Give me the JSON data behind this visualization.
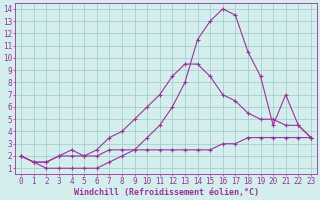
{
  "xlabel": "Windchill (Refroidissement éolien,°C)",
  "bg_color": "#d4eeed",
  "grid_color": "#a8cece",
  "line_color": "#993399",
  "xlim": [
    -0.5,
    23.5
  ],
  "ylim": [
    0.5,
    14.5
  ],
  "xticks": [
    0,
    1,
    2,
    3,
    4,
    5,
    6,
    7,
    8,
    9,
    10,
    11,
    12,
    13,
    14,
    15,
    16,
    17,
    18,
    19,
    20,
    21,
    22,
    23
  ],
  "yticks": [
    1,
    2,
    3,
    4,
    5,
    6,
    7,
    8,
    9,
    10,
    11,
    12,
    13,
    14
  ],
  "line1_x": [
    0,
    1,
    2,
    3,
    4,
    5,
    6,
    7,
    8,
    9,
    10,
    11,
    12,
    13,
    14,
    15,
    16,
    17,
    18,
    19,
    20,
    21,
    22,
    23
  ],
  "line1_y": [
    2.0,
    1.5,
    1.0,
    1.0,
    1.0,
    1.0,
    1.0,
    1.5,
    2.0,
    2.5,
    3.5,
    4.5,
    6.0,
    8.0,
    11.5,
    13.0,
    14.0,
    13.5,
    10.5,
    8.5,
    4.5,
    7.0,
    4.5,
    3.5
  ],
  "line2_x": [
    0,
    1,
    2,
    3,
    4,
    5,
    6,
    7,
    8,
    9,
    10,
    11,
    12,
    13,
    14,
    15,
    16,
    17,
    18,
    19,
    20,
    21,
    22,
    23
  ],
  "line2_y": [
    2.0,
    1.5,
    1.5,
    2.0,
    2.5,
    2.0,
    2.5,
    3.5,
    4.0,
    5.0,
    6.0,
    7.0,
    8.5,
    9.5,
    9.5,
    8.5,
    7.0,
    6.5,
    5.5,
    5.0,
    5.0,
    4.5,
    4.5,
    3.5
  ],
  "line3_x": [
    0,
    1,
    2,
    3,
    4,
    5,
    6,
    7,
    8,
    9,
    10,
    11,
    12,
    13,
    14,
    15,
    16,
    17,
    18,
    19,
    20,
    21,
    22,
    23
  ],
  "line3_y": [
    2.0,
    1.5,
    1.5,
    2.0,
    2.0,
    2.0,
    2.0,
    2.5,
    2.5,
    2.5,
    2.5,
    2.5,
    2.5,
    2.5,
    2.5,
    2.5,
    3.0,
    3.0,
    3.5,
    3.5,
    3.5,
    3.5,
    3.5,
    3.5
  ],
  "tick_fontsize": 5.5,
  "xlabel_fontsize": 6.0
}
